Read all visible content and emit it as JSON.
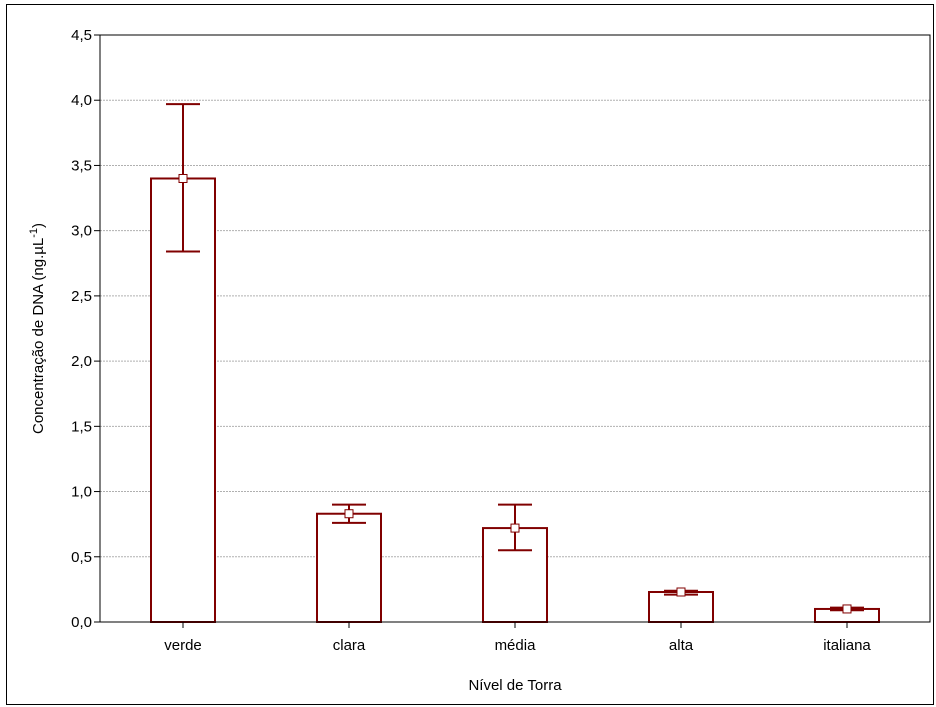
{
  "chart_data": {
    "type": "bar",
    "title": "",
    "xlabel": "Nível de Torra",
    "ylabel": "Concentração de DNA (ng.µL",
    "ylabel_superscript": "-1",
    "ylabel_suffix": ")",
    "categories": [
      "verde",
      "clara",
      "média",
      "alta",
      "italiana"
    ],
    "series": [
      {
        "values": [
          3.4,
          0.83,
          0.72,
          0.23,
          0.1
        ],
        "error_low": [
          2.84,
          0.76,
          0.55,
          0.21,
          0.09
        ],
        "error_high": [
          3.97,
          0.9,
          0.9,
          0.24,
          0.11
        ]
      }
    ],
    "ylim": [
      0,
      4.5
    ],
    "yticks": [
      "0,0",
      "0,5",
      "1,0",
      "1,5",
      "2,0",
      "2,5",
      "3,0",
      "3,5",
      "4,0",
      "4,5"
    ],
    "ytick_values": [
      0,
      0.5,
      1.0,
      1.5,
      2.0,
      2.5,
      3.0,
      3.5,
      4.0,
      4.5
    ],
    "grid": true,
    "colors": {
      "bar_edge": "#800000",
      "bar_fill": "#ffffff",
      "grid": "#b0b0b0",
      "marker_fill": "#ffffff"
    }
  }
}
